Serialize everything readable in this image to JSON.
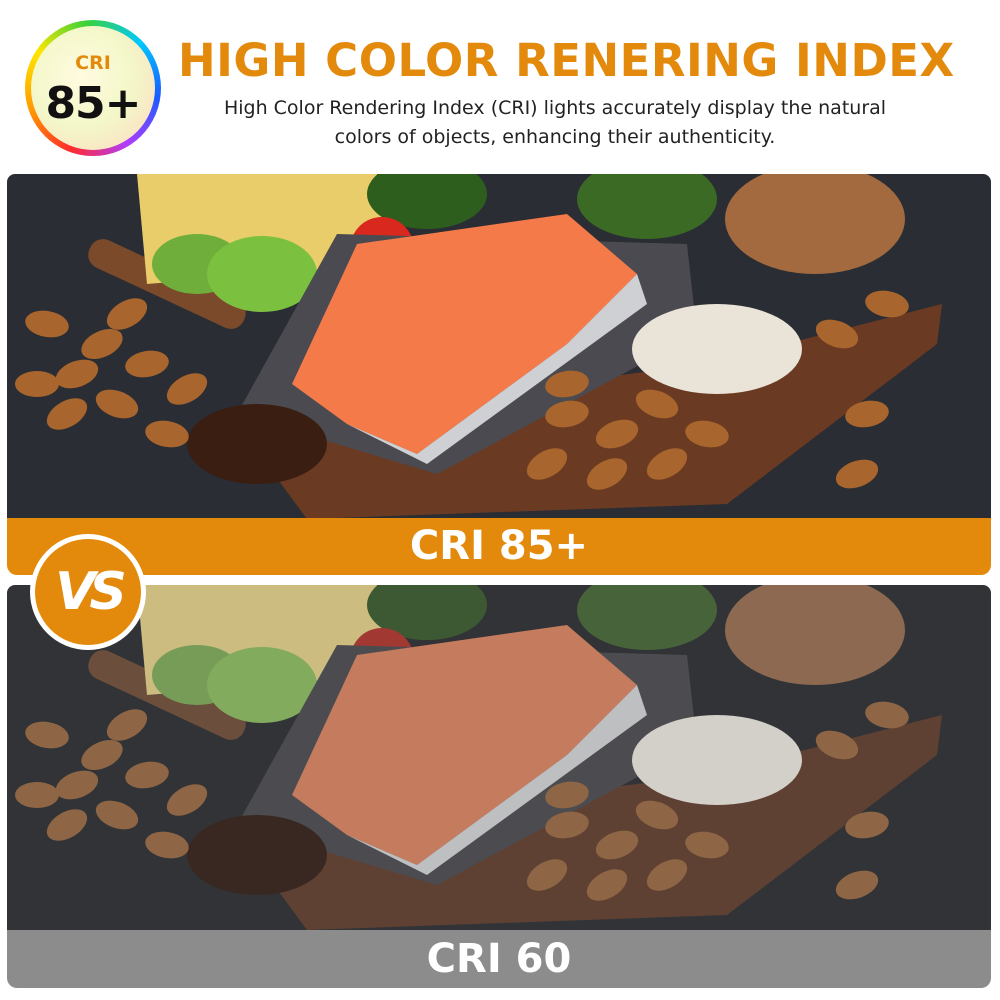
{
  "badge": {
    "label": "CRI",
    "value": "85+"
  },
  "header": {
    "title": "HIGH COLOR RENERING INDEX",
    "subtitle_line1": "High Color Rendering Index (CRI) lights accurately display the natural",
    "subtitle_line2": "colors of objects, enhancing their authenticity."
  },
  "comparison": {
    "top_label": "CRI 85+",
    "vs_label": "VS",
    "bottom_label": "CRI 60"
  },
  "colors": {
    "accent": "#e38a0c",
    "gray_band": "#8c8c8c",
    "title": "#e38a0c"
  }
}
